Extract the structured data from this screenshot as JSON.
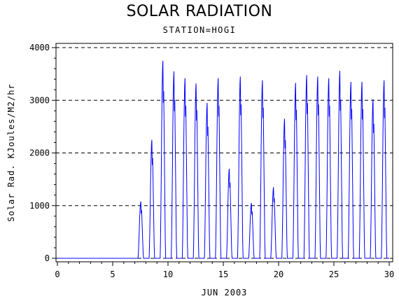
{
  "chart_data": {
    "type": "line",
    "title": "SOLAR RADIATION",
    "subtitle": "STATION=HOGI",
    "xlabel": "JUN 2003",
    "ylabel": "Solar Rad. KJoules/M2/hr",
    "xlim": [
      0,
      30
    ],
    "ylim": [
      0,
      4000
    ],
    "x_ticks": [
      "0",
      "5",
      "10",
      "15",
      "20",
      "25",
      "30"
    ],
    "y_ticks": [
      "0",
      "1000",
      "2000",
      "3000",
      "4000"
    ],
    "grid": "horizontal dashed",
    "line_color": "#0000ff",
    "series": [
      {
        "values": [
          {
            "day": 1,
            "peak": 0
          },
          {
            "day": 2,
            "peak": 0
          },
          {
            "day": 3,
            "peak": 0
          },
          {
            "day": 4,
            "peak": 0
          },
          {
            "day": 5,
            "peak": 0
          },
          {
            "day": 6,
            "peak": 0
          },
          {
            "day": 7,
            "peak": 0
          },
          {
            "day": 8,
            "peak": 1080
          },
          {
            "day": 9,
            "peak": 2250
          },
          {
            "day": 10,
            "peak": 3750
          },
          {
            "day": 11,
            "peak": 3550
          },
          {
            "day": 12,
            "peak": 3420
          },
          {
            "day": 13,
            "peak": 3320
          },
          {
            "day": 14,
            "peak": 2950
          },
          {
            "day": 15,
            "peak": 3420
          },
          {
            "day": 16,
            "peak": 1700
          },
          {
            "day": 17,
            "peak": 3450
          },
          {
            "day": 18,
            "peak": 1050
          },
          {
            "day": 19,
            "peak": 3380
          },
          {
            "day": 20,
            "peak": 1350
          },
          {
            "day": 21,
            "peak": 2650
          },
          {
            "day": 22,
            "peak": 3330
          },
          {
            "day": 23,
            "peak": 3480
          },
          {
            "day": 24,
            "peak": 3450
          },
          {
            "day": 25,
            "peak": 3420
          },
          {
            "day": 26,
            "peak": 3560
          },
          {
            "day": 27,
            "peak": 3350
          },
          {
            "day": 28,
            "peak": 3350
          },
          {
            "day": 29,
            "peak": 3020
          },
          {
            "day": 30,
            "peak": 3380
          }
        ]
      }
    ]
  }
}
